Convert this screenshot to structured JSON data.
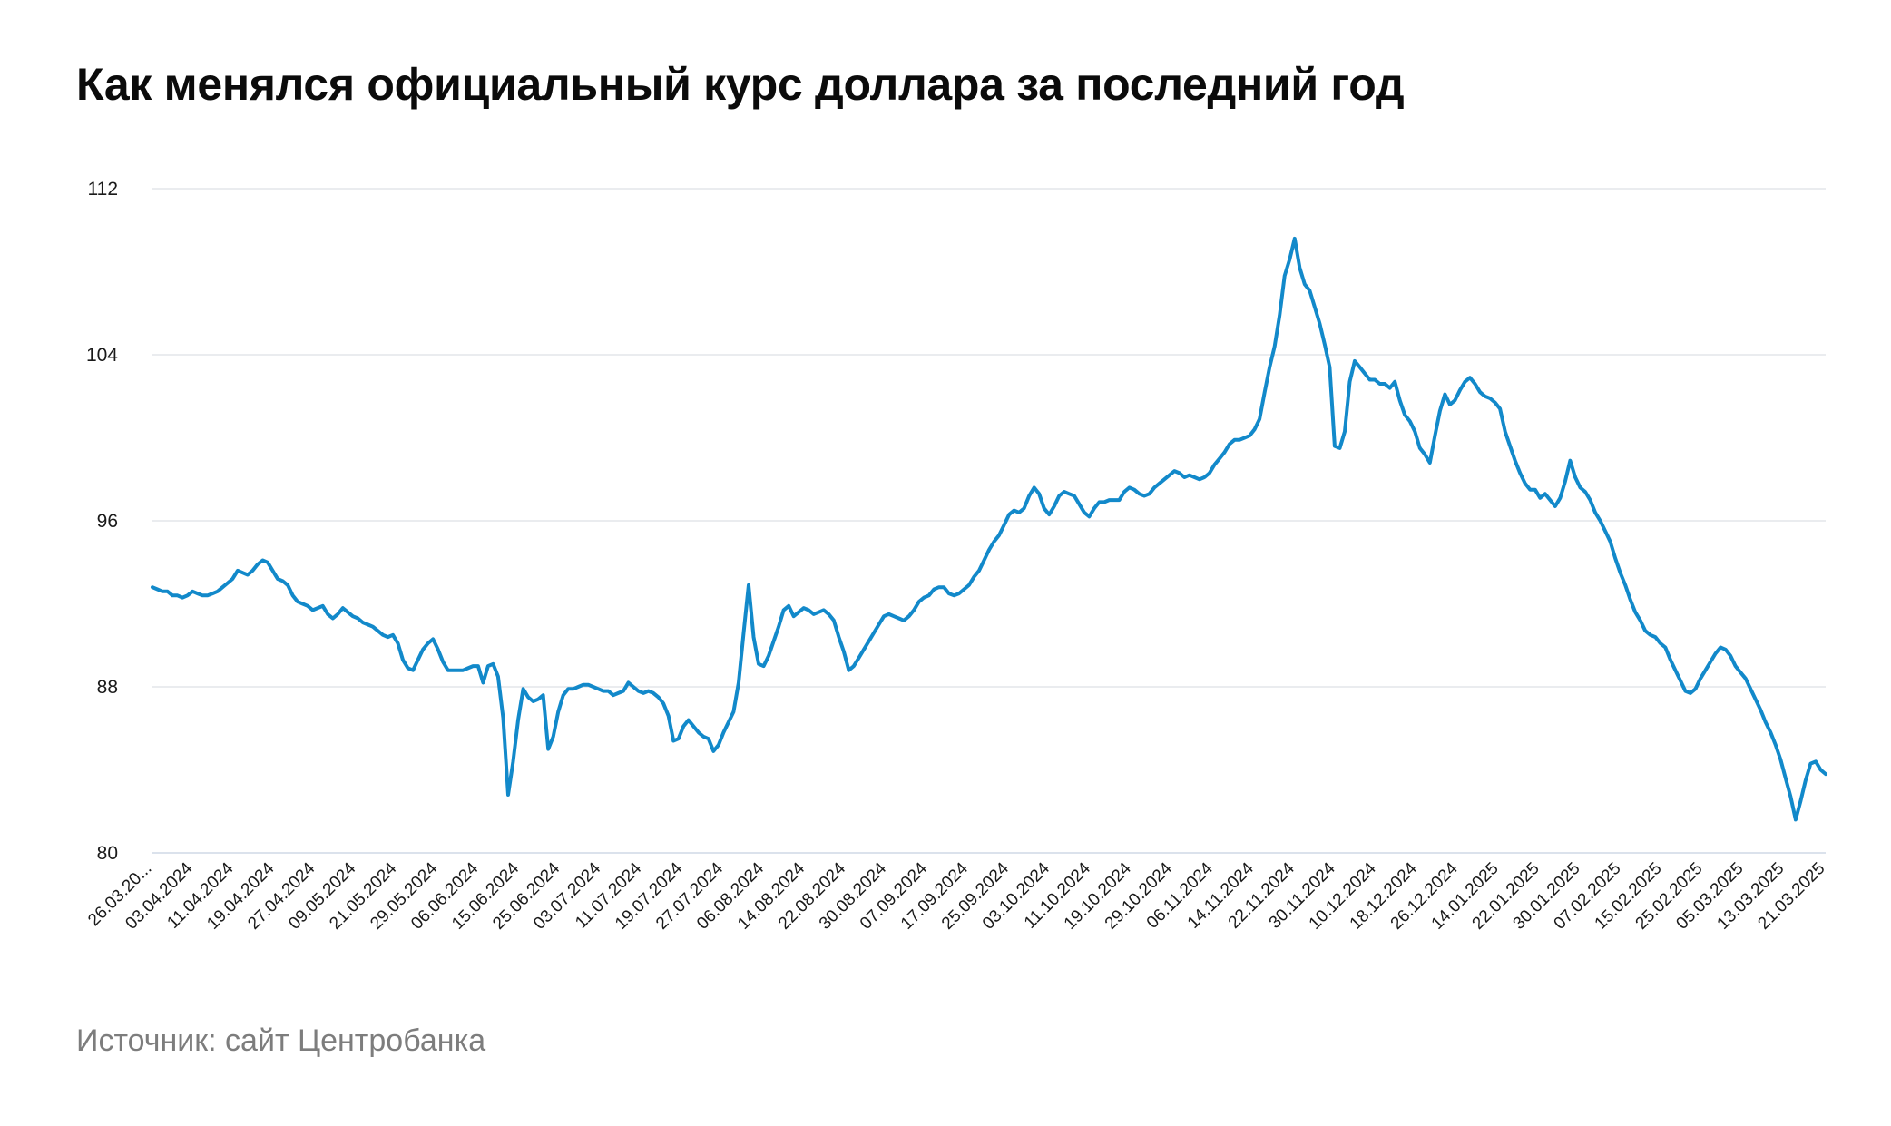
{
  "title": "Как менялся официальный курс доллара за последний год",
  "source": "Источник: сайт Центробанка",
  "colors": {
    "line": "#1289ca",
    "grid": "#e3e6ea",
    "title": "#0b0b0b",
    "source": "#7d7d7d"
  },
  "chart_data": {
    "type": "line",
    "title": "Как менялся официальный курс доллара за последний год",
    "xlabel": "",
    "ylabel": "",
    "ylim": [
      80,
      112
    ],
    "yticks": [
      80,
      88,
      96,
      104,
      112
    ],
    "grid": true,
    "legend": "none",
    "x_tick_labels": [
      "26.03.20...",
      "03.04.2024",
      "11.04.2024",
      "19.04.2024",
      "27.04.2024",
      "09.05.2024",
      "21.05.2024",
      "29.05.2024",
      "06.06.2024",
      "15.06.2024",
      "25.06.2024",
      "03.07.2024",
      "11.07.2024",
      "19.07.2024",
      "27.07.2024",
      "06.08.2024",
      "14.08.2024",
      "22.08.2024",
      "30.08.2024",
      "07.09.2024",
      "17.09.2024",
      "25.09.2024",
      "03.10.2024",
      "11.10.2024",
      "19.10.2024",
      "29.10.2024",
      "06.11.2024",
      "14.11.2024",
      "22.11.2024",
      "30.11.2024",
      "10.12.2024",
      "18.12.2024",
      "26.12.2024",
      "14.01.2025",
      "22.01.2025",
      "30.01.2025",
      "07.02.2025",
      "15.02.2025",
      "25.02.2025",
      "05.03.2025",
      "13.03.2025",
      "21.03.2025"
    ],
    "series": [
      {
        "values": [
          92.8,
          92.7,
          92.6,
          92.6,
          92.4,
          92.4,
          92.3,
          92.4,
          92.6,
          92.5,
          92.4,
          92.4,
          92.5,
          92.6,
          92.8,
          93.0,
          93.2,
          93.6,
          93.5,
          93.4,
          93.6,
          93.9,
          94.1,
          94.0,
          93.6,
          93.2,
          93.1,
          92.9,
          92.4,
          92.1,
          92.0,
          91.9,
          91.7,
          91.8,
          91.9,
          91.5,
          91.3,
          91.5,
          91.8,
          91.6,
          91.4,
          91.3,
          91.1,
          91.0,
          90.9,
          90.7,
          90.5,
          90.4,
          90.5,
          90.1,
          89.3,
          88.9,
          88.8,
          89.3,
          89.8,
          90.1,
          90.3,
          89.8,
          89.2,
          88.8,
          88.8,
          88.8,
          88.8,
          88.9,
          89.0,
          89.0,
          88.2,
          89.0,
          89.1,
          88.5,
          86.5,
          82.8,
          84.4,
          86.4,
          87.9,
          87.5,
          87.3,
          87.4,
          87.6,
          85.0,
          85.6,
          86.8,
          87.6,
          87.9,
          87.9,
          88.0,
          88.1,
          88.1,
          88.0,
          87.9,
          87.8,
          87.8,
          87.6,
          87.7,
          87.8,
          88.2,
          88.0,
          87.8,
          87.7,
          87.8,
          87.7,
          87.5,
          87.2,
          86.6,
          85.4,
          85.5,
          86.1,
          86.4,
          86.1,
          85.8,
          85.6,
          85.5,
          84.9,
          85.2,
          85.8,
          86.3,
          86.8,
          88.2,
          90.6,
          92.9,
          90.4,
          89.1,
          89.0,
          89.5,
          90.2,
          90.9,
          91.7,
          91.9,
          91.4,
          91.6,
          91.8,
          91.7,
          91.5,
          91.6,
          91.7,
          91.5,
          91.2,
          90.4,
          89.7,
          88.8,
          89.0,
          89.4,
          89.8,
          90.2,
          90.6,
          91.0,
          91.4,
          91.5,
          91.4,
          91.3,
          91.2,
          91.4,
          91.7,
          92.1,
          92.3,
          92.4,
          92.7,
          92.8,
          92.8,
          92.5,
          92.4,
          92.5,
          92.7,
          92.9,
          93.3,
          93.6,
          94.1,
          94.6,
          95.0,
          95.3,
          95.8,
          96.3,
          96.5,
          96.4,
          96.6,
          97.2,
          97.6,
          97.3,
          96.6,
          96.3,
          96.7,
          97.2,
          97.4,
          97.3,
          97.2,
          96.8,
          96.4,
          96.2,
          96.6,
          96.9,
          96.9,
          97.0,
          97.0,
          97.0,
          97.4,
          97.6,
          97.5,
          97.3,
          97.2,
          97.3,
          97.6,
          97.8,
          98.0,
          98.2,
          98.4,
          98.3,
          98.1,
          98.2,
          98.1,
          98.0,
          98.1,
          98.3,
          98.7,
          99.0,
          99.3,
          99.7,
          99.9,
          99.9,
          100.0,
          100.1,
          100.4,
          100.9,
          102.2,
          103.4,
          104.4,
          105.9,
          107.8,
          108.6,
          109.6,
          108.2,
          107.4,
          107.1,
          106.3,
          105.5,
          104.5,
          103.4,
          99.6,
          99.5,
          100.3,
          102.7,
          103.7,
          103.4,
          103.1,
          102.8,
          102.8,
          102.6,
          102.6,
          102.4,
          102.7,
          101.8,
          101.1,
          100.8,
          100.3,
          99.5,
          99.2,
          98.8,
          100.1,
          101.3,
          102.1,
          101.6,
          101.8,
          102.3,
          102.7,
          102.9,
          102.6,
          102.2,
          102.0,
          101.9,
          101.7,
          101.4,
          100.3,
          99.6,
          98.9,
          98.3,
          97.8,
          97.5,
          97.5,
          97.1,
          97.3,
          97.0,
          96.7,
          97.1,
          97.9,
          98.9,
          98.1,
          97.6,
          97.4,
          97.0,
          96.4,
          96.0,
          95.5,
          95.0,
          94.2,
          93.5,
          92.9,
          92.2,
          91.6,
          91.2,
          90.7,
          90.5,
          90.4,
          90.1,
          89.9,
          89.3,
          88.8,
          88.3,
          87.8,
          87.7,
          87.9,
          88.4,
          88.8,
          89.2,
          89.6,
          89.9,
          89.8,
          89.5,
          89.0,
          88.7,
          88.4,
          87.9,
          87.4,
          86.9,
          86.3,
          85.8,
          85.2,
          84.5,
          83.6,
          82.7,
          81.6,
          82.5,
          83.5,
          84.3,
          84.4,
          84.0,
          83.8
        ]
      }
    ]
  }
}
